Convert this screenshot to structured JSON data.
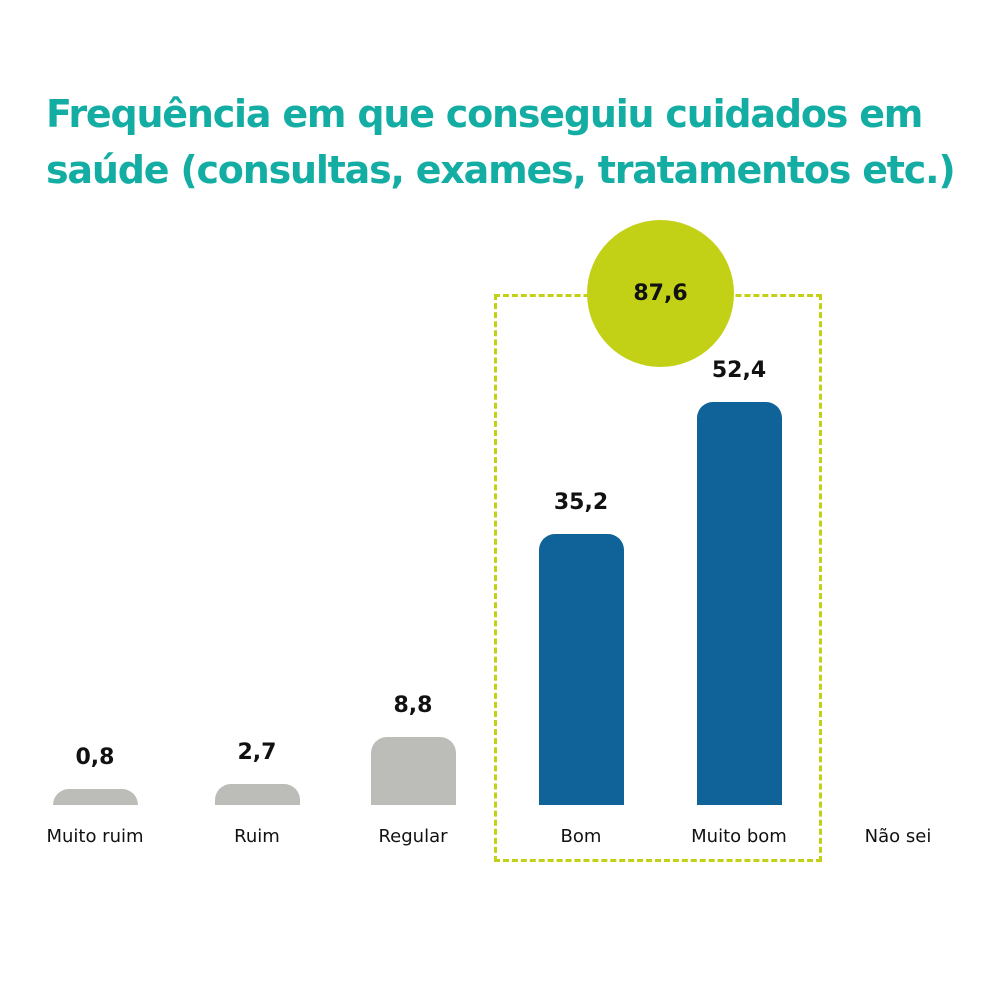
{
  "title": "Frequência em que conseguiu cuidados em saúde (consultas, exames, tratamentos etc.)",
  "highlight": {
    "value_label": "87,6",
    "color": "#c3d116",
    "covers": [
      "Bom",
      "Muito bom"
    ]
  },
  "colors": {
    "title": "#13ada3",
    "negative_bars": "#bcbdb9",
    "positive_bars": "#106399"
  },
  "bars": [
    {
      "category": "Muito ruim",
      "label": "0,8",
      "value": 0.8
    },
    {
      "category": "Ruim",
      "label": "2,7",
      "value": 2.7
    },
    {
      "category": "Regular",
      "label": "8,8",
      "value": 8.8
    },
    {
      "category": "Bom",
      "label": "35,2",
      "value": 35.2
    },
    {
      "category": "Muito bom",
      "label": "52,4",
      "value": 52.4
    },
    {
      "category": "Não sei",
      "label": "",
      "value": 0
    }
  ],
  "chart_data": {
    "type": "bar",
    "title": "Frequência em que conseguiu cuidados em saúde (consultas, exames, tratamentos etc.)",
    "categories": [
      "Muito ruim",
      "Ruim",
      "Regular",
      "Bom",
      "Muito bom",
      "Não sei"
    ],
    "values": [
      0.8,
      2.7,
      8.8,
      35.2,
      52.4,
      0
    ],
    "annotations": [
      {
        "text": "87,6",
        "spans": [
          "Bom",
          "Muito bom"
        ],
        "meaning": "Bom + Muito bom total"
      }
    ],
    "xlabel": "",
    "ylabel": "",
    "grid": false,
    "legend": null
  }
}
